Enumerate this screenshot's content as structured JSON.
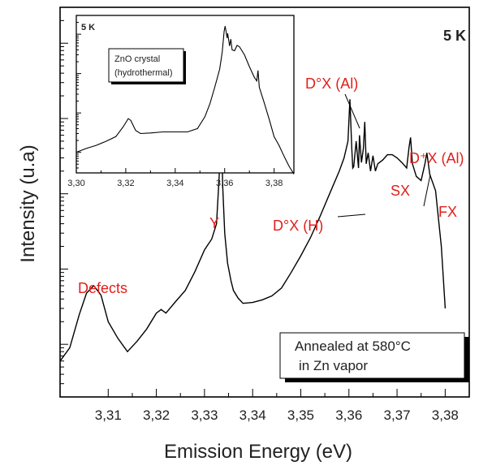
{
  "chart_data": {
    "type": "line",
    "title": "5 K",
    "xlabel": "Emission Energy (eV)",
    "ylabel": "Intensity (u.a)",
    "y_scale": "log",
    "xlim": [
      3.3,
      3.385
    ],
    "x_ticks": [
      "3,31",
      "3,32",
      "3,33",
      "3,34",
      "3,35",
      "3,36",
      "3,37",
      "3,38"
    ],
    "series": [
      {
        "x": [
          3.3,
          3.302,
          3.304,
          3.3055,
          3.307,
          3.3085,
          3.31,
          3.312,
          3.314,
          3.316,
          3.318,
          3.32,
          3.321,
          3.322,
          3.324,
          3.326,
          3.328,
          3.33,
          3.3315,
          3.3325,
          3.333,
          3.3335,
          3.3338,
          3.3342,
          3.3348,
          3.3355,
          3.336,
          3.337,
          3.338,
          3.34,
          3.342,
          3.344,
          3.346,
          3.348,
          3.35,
          3.352,
          3.354,
          3.356,
          3.358,
          3.359,
          3.3598,
          3.3602,
          3.3606,
          3.3608,
          3.361,
          3.3615,
          3.362,
          3.3622,
          3.3626,
          3.363,
          3.3633,
          3.3636,
          3.364,
          3.3645,
          3.365,
          3.3655,
          3.366,
          3.367,
          3.368,
          3.369,
          3.37,
          3.371,
          3.372,
          3.3725,
          3.3728,
          3.3732,
          3.374,
          3.375,
          3.3758,
          3.3762,
          3.3768,
          3.378,
          3.3792,
          3.38
        ],
        "values": [
          600,
          900,
          2500,
          4800,
          6000,
          4500,
          2000,
          1200,
          800,
          1100,
          1600,
          2600,
          2900,
          2600,
          3700,
          5200,
          9200,
          18000,
          25000,
          40000,
          150000,
          700000,
          120000,
          30000,
          12000,
          7000,
          5200,
          4100,
          3500,
          3600,
          3900,
          4400,
          5600,
          9000,
          15000,
          26000,
          50000,
          100000,
          200000,
          300000,
          500000,
          1800000,
          400000,
          220000,
          230000,
          500000,
          220000,
          600000,
          260000,
          400000,
          900000,
          250000,
          350000,
          200000,
          320000,
          200000,
          250000,
          280000,
          330000,
          330000,
          300000,
          260000,
          220000,
          420000,
          560000,
          250000,
          170000,
          150000,
          250000,
          350000,
          180000,
          110000,
          20000,
          3000
        ]
      }
    ],
    "annotations": [
      "D°X (Al)",
      "D⁺X (Al)",
      "SX",
      "FX",
      "D°X (H)",
      "Y",
      "Defects"
    ],
    "legend_box": {
      "line1": "Annealed at 580°C",
      "line2": "in Zn vapor"
    },
    "inset": {
      "type": "line",
      "title": "5 K",
      "y_scale": "log",
      "xlim": [
        3.3,
        3.388
      ],
      "x_ticks": [
        "3,30",
        "3,32",
        "3,34",
        "3,36",
        "3,38"
      ],
      "legend_box": {
        "line1": "ZnO crystal",
        "line2": "(hydrothermal)"
      },
      "series": [
        {
          "x": [
            3.3,
            3.304,
            3.308,
            3.312,
            3.316,
            3.319,
            3.321,
            3.322,
            3.324,
            3.326,
            3.33,
            3.335,
            3.34,
            3.345,
            3.349,
            3.352,
            3.354,
            3.356,
            3.358,
            3.359,
            3.3598,
            3.3602,
            3.361,
            3.3612,
            3.362,
            3.3625,
            3.363,
            3.364,
            3.365,
            3.366,
            3.368,
            3.37,
            3.372,
            3.373,
            3.3735,
            3.374,
            3.376,
            3.378,
            3.38,
            3.382,
            3.384,
            3.386,
            3.388
          ],
          "values": [
            1.0,
            1.25,
            1.5,
            1.9,
            2.5,
            4.5,
            7.2,
            6.5,
            3.6,
            3.0,
            3.1,
            3.3,
            3.3,
            3.3,
            4.0,
            8.0,
            17,
            45,
            130,
            350,
            1200,
            1600,
            800,
            1050,
            500,
            750,
            400,
            380,
            520,
            480,
            300,
            150,
            80,
            65,
            120,
            45,
            18,
            7,
            2.5,
            1.5,
            0.8,
            0.45,
            0.28
          ]
        }
      ]
    }
  }
}
